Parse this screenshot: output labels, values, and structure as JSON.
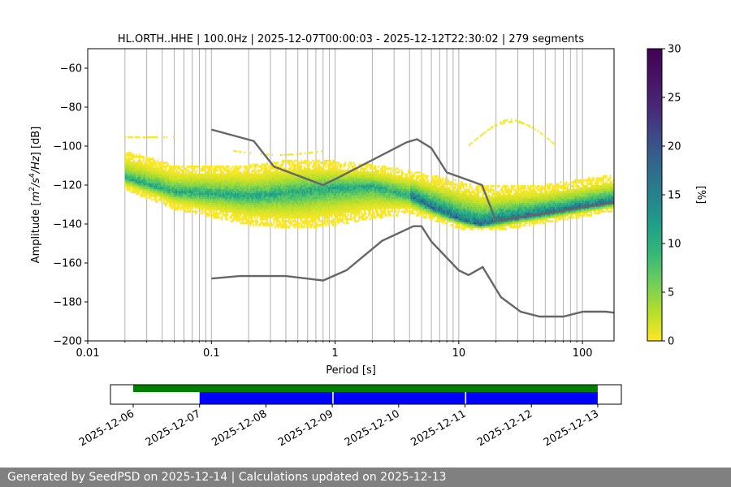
{
  "chart_data": {
    "type": "heatmap",
    "title": "HL.ORTH..HHE | 100.0Hz | 2025-12-07T00:00:03 - 2025-12-12T22:30:02 | 279 segments",
    "xlabel": "Period [s]",
    "ylabel": "Amplitude [m²/s⁴/Hz] [dB]",
    "ylabel_parts": {
      "prefix": "Amplitude [",
      "m": "m",
      "sup1": "2",
      "s": "/s",
      "sup2": "4",
      "rest": "/Hz",
      "suffix": "] [dB]"
    },
    "x_scale": "log",
    "xlim": [
      0.01,
      180
    ],
    "ylim": [
      -200,
      -50
    ],
    "x_ticks": [
      {
        "value": 0.01,
        "label": "0.01"
      },
      {
        "value": 0.1,
        "label": "0.1"
      },
      {
        "value": 1,
        "label": "1"
      },
      {
        "value": 10,
        "label": "10"
      },
      {
        "value": 100,
        "label": "100"
      }
    ],
    "y_ticks": [
      {
        "value": -60,
        "label": "−60"
      },
      {
        "value": -80,
        "label": "−80"
      },
      {
        "value": -100,
        "label": "−100"
      },
      {
        "value": -120,
        "label": "−120"
      },
      {
        "value": -140,
        "label": "−140"
      },
      {
        "value": -160,
        "label": "−160"
      },
      {
        "value": -180,
        "label": "−180"
      },
      {
        "value": -200,
        "label": "−200"
      }
    ],
    "grid": true,
    "noise_models": [
      {
        "name": "upper",
        "points": [
          [
            0.1,
            -91.5
          ],
          [
            0.22,
            -97.4
          ],
          [
            0.32,
            -110.5
          ],
          [
            0.8,
            -120
          ],
          [
            1,
            -117
          ],
          [
            3.8,
            -98
          ],
          [
            4.6,
            -96.5
          ],
          [
            6,
            -101
          ],
          [
            8,
            -113.5
          ],
          [
            15.4,
            -120
          ],
          [
            20,
            -138.5
          ],
          [
            354,
            -126
          ]
        ]
      },
      {
        "name": "lower",
        "points": [
          [
            0.1,
            -168
          ],
          [
            0.17,
            -166.7
          ],
          [
            0.4,
            -166.7
          ],
          [
            0.8,
            -169
          ],
          [
            1.24,
            -163.7
          ],
          [
            2.4,
            -148.6
          ],
          [
            4.3,
            -141.1
          ],
          [
            5,
            -141.1
          ],
          [
            6,
            -149
          ],
          [
            10,
            -163.8
          ],
          [
            12,
            -166.2
          ],
          [
            15.6,
            -162.1
          ],
          [
            21.9,
            -177.5
          ],
          [
            31.6,
            -185
          ],
          [
            45,
            -187.5
          ],
          [
            70,
            -187.5
          ],
          [
            101,
            -185
          ],
          [
            154,
            -185
          ],
          [
            180,
            -185.5
          ]
        ]
      }
    ],
    "colorbar": {
      "label": "[%]",
      "min": 0,
      "max": 30,
      "ticks": [
        "0",
        "5",
        "10",
        "15",
        "20",
        "25",
        "30"
      ],
      "colormap": "viridis_r"
    },
    "timeline": {
      "dates": [
        "2025-12-06",
        "2025-12-07",
        "2025-12-08",
        "2025-12-09",
        "2025-12-10",
        "2025-12-11",
        "2025-12-12",
        "2025-12-13"
      ],
      "green_bar": {
        "start": 0.0,
        "end": 7.0
      },
      "blue_segments": [
        [
          1.0,
          3.0
        ],
        [
          3.02,
          5.0
        ],
        [
          5.02,
          7.0
        ]
      ],
      "colors": {
        "green": "#008000",
        "blue": "#0000ff"
      }
    }
  },
  "footer": {
    "text": "Generated by SeedPSD on 2025-12-14 | Calculations updated on 2025-12-13"
  }
}
